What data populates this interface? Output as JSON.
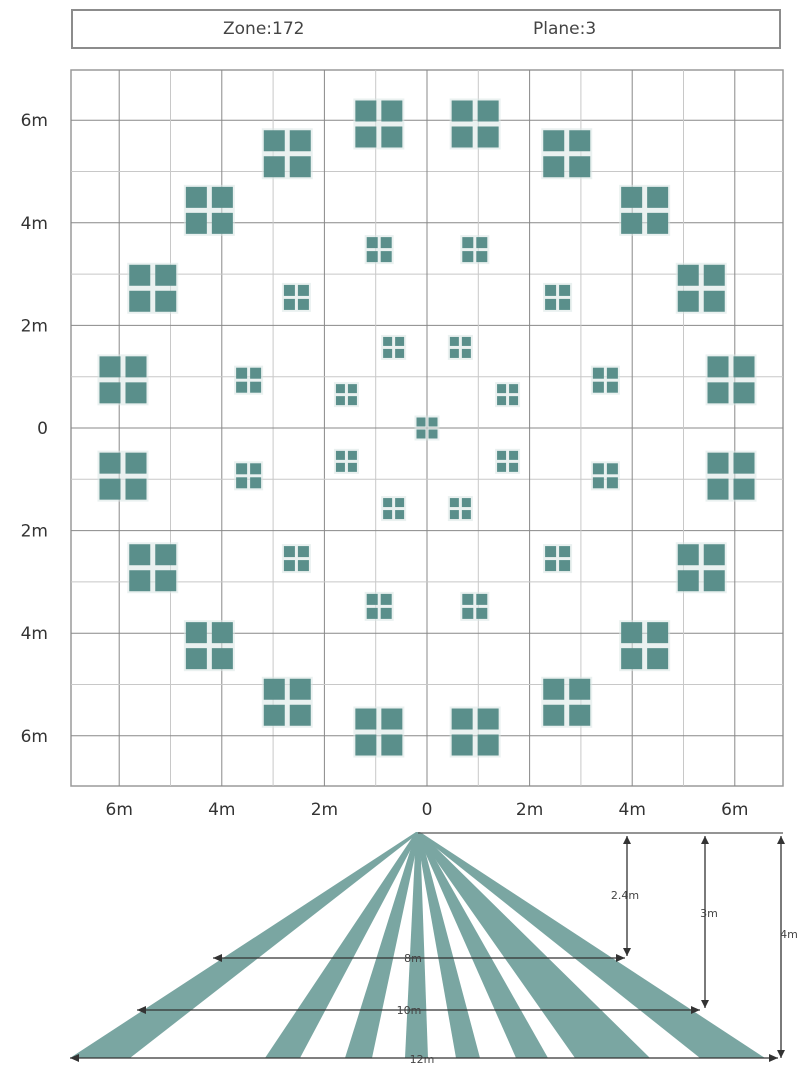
{
  "header": {
    "zone": "Zone:172",
    "plane": "Plane:3"
  },
  "top_view": {
    "y_axis_labels": [
      "6m",
      "4m",
      "2m",
      "0",
      "2m",
      "4m",
      "6m"
    ],
    "x_axis_labels": [
      "6m",
      "4m",
      "2m",
      "0",
      "2m",
      "4m",
      "6m"
    ],
    "rings": [
      {
        "ring": "outer",
        "radius_m": 6.0,
        "cluster_count": 20,
        "cluster": "2x2 large squares"
      },
      {
        "ring": "middle",
        "radius_m": 3.6,
        "cluster_count": 12,
        "cluster": "2x2 medium squares"
      },
      {
        "ring": "inner",
        "radius_m": 1.7,
        "cluster_count": 8,
        "cluster": "2x2 small squares"
      },
      {
        "ring": "center",
        "radius_m": 0.0,
        "cluster_count": 1,
        "cluster": "2x2 small squares"
      }
    ],
    "colors": {
      "zone_fill": "#5a8f8b",
      "grid_major": "#888888",
      "grid_minor": "#c8c8c8"
    }
  },
  "side_view": {
    "heights": [
      "2.4m",
      "3m",
      "4m"
    ],
    "widths": [
      "8m",
      "10m",
      "12m"
    ],
    "beam_color": "#7aa6a2"
  }
}
